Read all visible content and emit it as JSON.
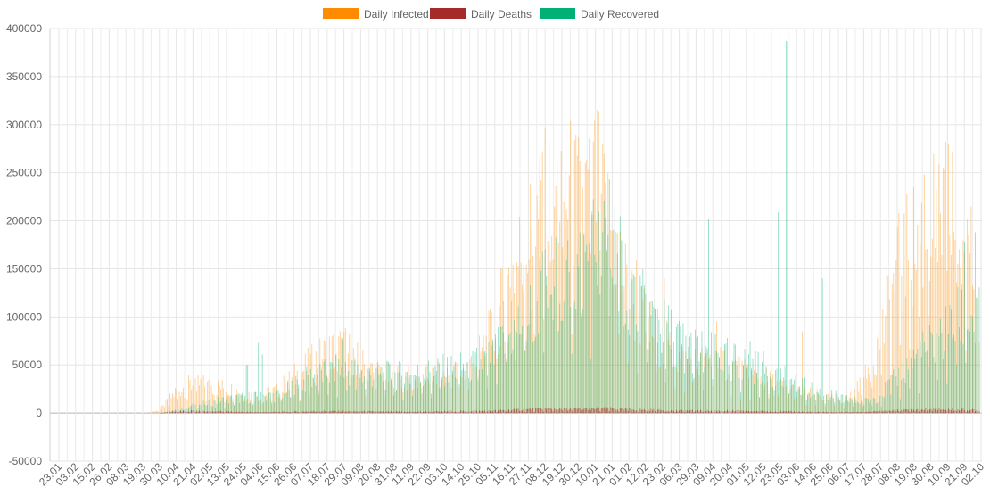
{
  "chart_data": {
    "type": "bar",
    "title": "",
    "xlabel": "",
    "ylabel": "",
    "ylim": [
      -50000,
      400000
    ],
    "yticks": [
      400000,
      350000,
      300000,
      250000,
      200000,
      150000,
      100000,
      50000,
      0,
      -50000
    ],
    "grid": true,
    "legend": "top-center",
    "x_tick_labels": [
      "23.01",
      "03.02",
      "15.02",
      "26.02",
      "08.03",
      "19.03",
      "30.03",
      "10.04",
      "21.04",
      "02.05",
      "13.05",
      "24.05",
      "04.06",
      "15.06",
      "26.06",
      "07.07",
      "18.07",
      "29.07",
      "09.08",
      "20.08",
      "31.08",
      "11.09",
      "22.09",
      "03.10",
      "14.10",
      "25.10",
      "05.11",
      "16.11",
      "27.11",
      "08.12",
      "19.12",
      "30.12",
      "10.01",
      "21.01",
      "01.02",
      "12.02",
      "23.02",
      "06.03",
      "29.03",
      "09.04",
      "20.04",
      "01.05",
      "12.05",
      "23.05",
      "03.06",
      "14.06",
      "25.06",
      "06.07",
      "17.07",
      "28.07",
      "08.08",
      "19.08",
      "30.08",
      "10.09",
      "21.09",
      "02.10"
    ],
    "series": [
      {
        "name": "Daily Infected",
        "color": "#ff8c00",
        "profile": [
          [
            0,
            0
          ],
          [
            5,
            0
          ],
          [
            6,
            3000
          ],
          [
            7,
            25000
          ],
          [
            8,
            33000
          ],
          [
            9,
            30000
          ],
          [
            10,
            28000
          ],
          [
            11,
            22000
          ],
          [
            12,
            20000
          ],
          [
            13,
            25000
          ],
          [
            14,
            40000
          ],
          [
            15,
            55000
          ],
          [
            16,
            68000
          ],
          [
            17,
            72000
          ],
          [
            18,
            55000
          ],
          [
            19,
            42000
          ],
          [
            20,
            40000
          ],
          [
            21,
            38000
          ],
          [
            22,
            40000
          ],
          [
            23,
            42000
          ],
          [
            24,
            45000
          ],
          [
            25,
            62000
          ],
          [
            26,
            95000
          ],
          [
            27,
            160000
          ],
          [
            28,
            195000
          ],
          [
            29,
            230000
          ],
          [
            30,
            250000
          ],
          [
            31,
            230000
          ],
          [
            32,
            255000
          ],
          [
            33,
            195000
          ],
          [
            34,
            130000
          ],
          [
            35,
            100000
          ],
          [
            36,
            80000
          ],
          [
            37,
            60000
          ],
          [
            38,
            55000
          ],
          [
            39,
            60000
          ],
          [
            40,
            55000
          ],
          [
            41,
            42000
          ],
          [
            42,
            38000
          ],
          [
            43,
            30000
          ],
          [
            44,
            25000
          ],
          [
            45,
            20000
          ],
          [
            46,
            16000
          ],
          [
            47,
            15000
          ],
          [
            48,
            35000
          ],
          [
            49,
            85000
          ],
          [
            50,
            160000
          ],
          [
            51,
            190000
          ],
          [
            52,
            215000
          ],
          [
            53,
            230000
          ],
          [
            54,
            170000
          ],
          [
            55,
            120000
          ],
          [
            55.9,
            95000
          ]
        ],
        "peaks": [
          [
            8.1,
            36000
          ],
          [
            16.8,
            78000
          ],
          [
            28.8,
            272000
          ],
          [
            30.9,
            268000
          ],
          [
            32.2,
            313000
          ],
          [
            34.4,
            160000
          ],
          [
            36.1,
            140000
          ],
          [
            39.2,
            95000
          ],
          [
            44.3,
            85000
          ],
          [
            51.6,
            248000
          ],
          [
            52.8,
            253000
          ],
          [
            53.3,
            272000
          ],
          [
            54.4,
            215000
          ],
          [
            55.5,
            150000
          ]
        ]
      },
      {
        "name": "Daily Recovered",
        "color": "#00b074",
        "profile": [
          [
            0,
            0
          ],
          [
            6,
            0
          ],
          [
            7,
            3000
          ],
          [
            8,
            8000
          ],
          [
            9,
            12000
          ],
          [
            10,
            15000
          ],
          [
            11,
            18000
          ],
          [
            12,
            18000
          ],
          [
            13,
            20000
          ],
          [
            14,
            30000
          ],
          [
            15,
            40000
          ],
          [
            16,
            45000
          ],
          [
            17,
            48000
          ],
          [
            18,
            45000
          ],
          [
            19,
            42000
          ],
          [
            20,
            42000
          ],
          [
            21,
            42000
          ],
          [
            22,
            45000
          ],
          [
            23,
            48000
          ],
          [
            24,
            50000
          ],
          [
            25,
            55000
          ],
          [
            26,
            65000
          ],
          [
            27,
            90000
          ],
          [
            28,
            110000
          ],
          [
            29,
            140000
          ],
          [
            30,
            150000
          ],
          [
            31,
            160000
          ],
          [
            32,
            190000
          ],
          [
            33,
            175000
          ],
          [
            34,
            140000
          ],
          [
            35,
            110000
          ],
          [
            36,
            95000
          ],
          [
            37,
            80000
          ],
          [
            38,
            70000
          ],
          [
            39,
            65000
          ],
          [
            40,
            60000
          ],
          [
            41,
            55000
          ],
          [
            42,
            50000
          ],
          [
            43,
            40000
          ],
          [
            44,
            32000
          ],
          [
            45,
            25000
          ],
          [
            46,
            20000
          ],
          [
            47,
            15000
          ],
          [
            48,
            12000
          ],
          [
            49,
            20000
          ],
          [
            50,
            40000
          ],
          [
            51,
            60000
          ],
          [
            52,
            75000
          ],
          [
            53,
            90000
          ],
          [
            54,
            110000
          ],
          [
            55,
            100000
          ],
          [
            55.9,
            70000
          ]
        ],
        "peaks": [
          [
            11.2,
            50000
          ],
          [
            11.9,
            73000
          ],
          [
            12.1,
            61000
          ],
          [
            16.9,
            76000
          ],
          [
            32.8,
            243000
          ],
          [
            33.1,
            215000
          ],
          [
            38.7,
            202000
          ],
          [
            41.2,
            75000
          ],
          [
            42.9,
            209000
          ],
          [
            43.4,
            387000
          ],
          [
            45.5,
            140000
          ],
          [
            54.0,
            178000
          ],
          [
            54.6,
            188000
          ]
        ]
      },
      {
        "name": "Daily Deaths",
        "color": "#a52a2a",
        "profile": [
          [
            0,
            0
          ],
          [
            6,
            0
          ],
          [
            7,
            1500
          ],
          [
            8,
            2500
          ],
          [
            9,
            2000
          ],
          [
            10,
            1500
          ],
          [
            11,
            1200
          ],
          [
            12,
            1000
          ],
          [
            13,
            1200
          ],
          [
            14,
            1500
          ],
          [
            15,
            1800
          ],
          [
            16,
            2000
          ],
          [
            17,
            2000
          ],
          [
            18,
            1800
          ],
          [
            19,
            1500
          ],
          [
            20,
            1500
          ],
          [
            21,
            1300
          ],
          [
            22,
            1500
          ],
          [
            23,
            1800
          ],
          [
            24,
            2000
          ],
          [
            25,
            2200
          ],
          [
            26,
            2500
          ],
          [
            27,
            3500
          ],
          [
            28,
            4000
          ],
          [
            29,
            4500
          ],
          [
            30,
            4500
          ],
          [
            31,
            4500
          ],
          [
            32,
            5000
          ],
          [
            33,
            4800
          ],
          [
            34,
            4000
          ],
          [
            35,
            3500
          ],
          [
            36,
            3000
          ],
          [
            37,
            2500
          ],
          [
            38,
            2500
          ],
          [
            39,
            2500
          ],
          [
            40,
            2500
          ],
          [
            41,
            2200
          ],
          [
            42,
            2000
          ],
          [
            43,
            1800
          ],
          [
            44,
            1500
          ],
          [
            45,
            1200
          ],
          [
            46,
            1000
          ],
          [
            47,
            1000
          ],
          [
            48,
            1200
          ],
          [
            49,
            2000
          ],
          [
            50,
            3000
          ],
          [
            51,
            3500
          ],
          [
            52,
            4000
          ],
          [
            53,
            4000
          ],
          [
            54,
            3500
          ],
          [
            55,
            3000
          ],
          [
            55.9,
            2500
          ]
        ],
        "peaks": []
      }
    ]
  }
}
